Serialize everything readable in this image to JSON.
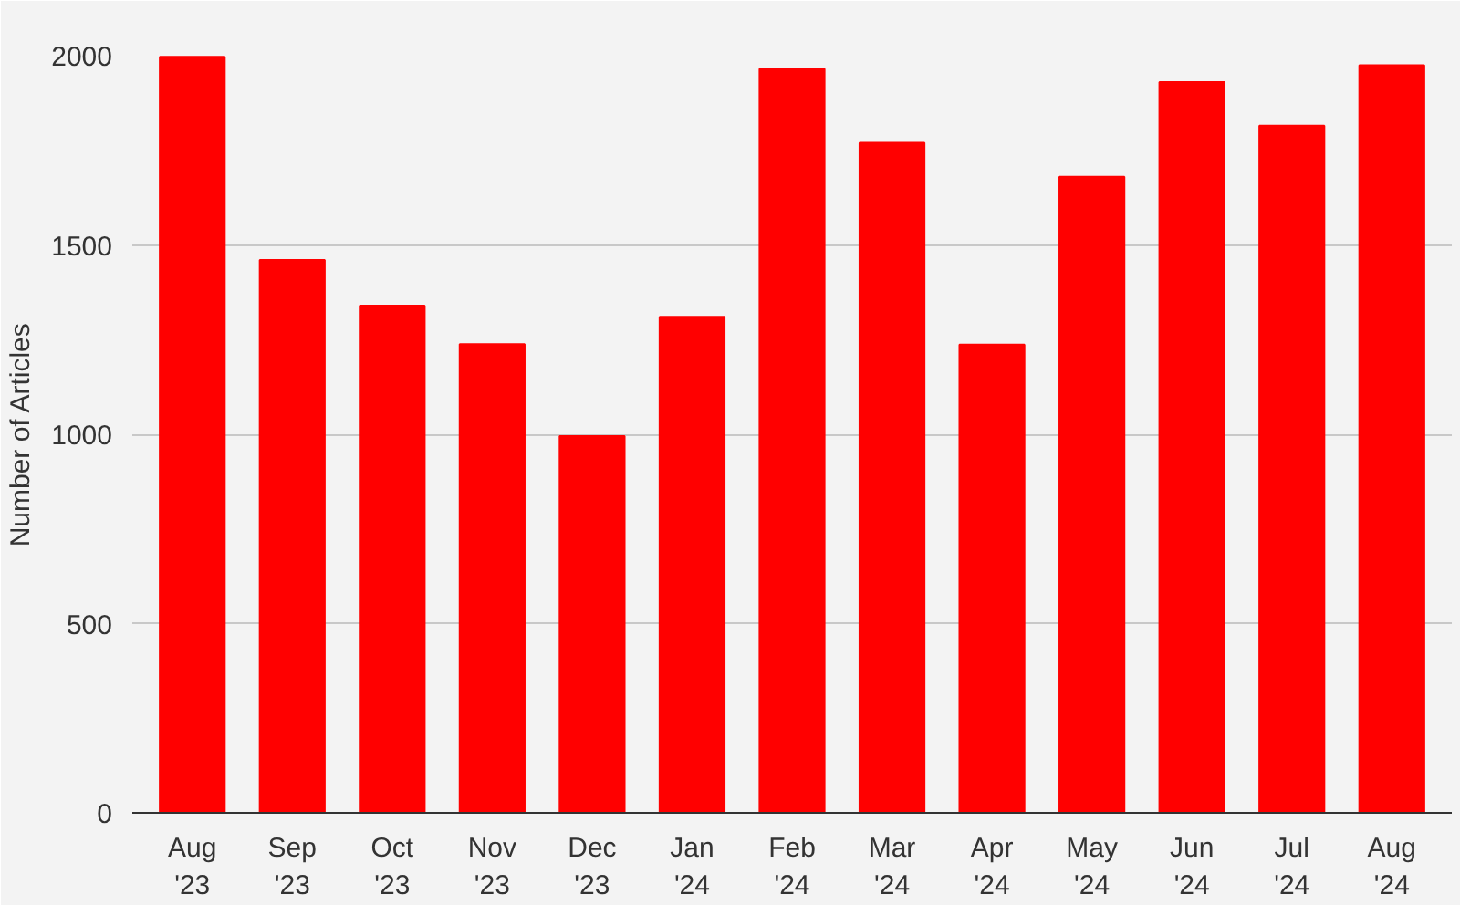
{
  "chart_data": {
    "type": "bar",
    "ylabel": "Number of Articles",
    "categories": [
      "Aug\n'23",
      "Sep\n'23",
      "Oct\n'23",
      "Nov\n'23",
      "Dec\n'23",
      "Jan\n'24",
      "Feb\n'24",
      "Mar\n'24",
      "Apr\n'24",
      "May\n'24",
      "Jun\n'24",
      "Jul\n'24",
      "Aug\n'24"
    ],
    "values": [
      1997,
      1460,
      1340,
      1238,
      995,
      1310,
      1965,
      1770,
      1237,
      1680,
      1930,
      1815,
      1975
    ],
    "color": "#ff0000",
    "ylim": [
      0,
      2000
    ],
    "yticks": [
      0,
      500,
      1000,
      1500,
      2000
    ],
    "grid": "y"
  }
}
